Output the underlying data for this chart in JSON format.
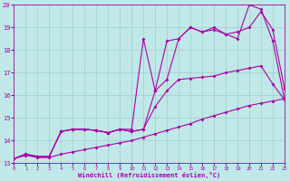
{
  "xlabel": "Windchill (Refroidissement éolien,°C)",
  "bg_color": "#c0e8e8",
  "grid_color": "#a0cccc",
  "line_color": "#aa00aa",
  "xmin": 0,
  "xmax": 23,
  "ymin": 13,
  "ymax": 20,
  "yticks": [
    13,
    14,
    15,
    16,
    17,
    18,
    19,
    20
  ],
  "xticks": [
    0,
    1,
    2,
    3,
    4,
    5,
    6,
    7,
    8,
    9,
    10,
    11,
    12,
    13,
    14,
    15,
    16,
    17,
    18,
    19,
    20,
    21,
    22,
    23
  ],
  "line1_x": [
    0,
    1,
    2,
    3,
    4,
    5,
    6,
    7,
    8,
    9,
    10,
    11,
    12,
    13,
    14,
    15,
    16,
    17,
    18,
    19,
    20,
    21,
    22,
    23
  ],
  "line1_y": [
    13.2,
    13.35,
    13.25,
    13.25,
    13.4,
    13.5,
    13.6,
    13.7,
    13.8,
    13.9,
    14.0,
    14.15,
    14.3,
    14.45,
    14.6,
    14.75,
    14.95,
    15.1,
    15.25,
    15.4,
    15.55,
    15.65,
    15.75,
    15.85
  ],
  "line2_x": [
    0,
    1,
    2,
    3,
    4,
    5,
    6,
    7,
    8,
    9,
    10,
    11,
    12,
    13,
    14,
    15,
    16,
    17,
    18,
    19,
    20,
    21,
    22,
    23
  ],
  "line2_y": [
    13.2,
    13.4,
    13.3,
    13.3,
    14.4,
    14.5,
    14.5,
    14.45,
    14.35,
    14.5,
    14.4,
    14.5,
    15.5,
    16.2,
    16.7,
    16.75,
    16.8,
    16.85,
    17.0,
    17.1,
    17.2,
    17.3,
    16.5,
    15.8
  ],
  "line3_x": [
    0,
    1,
    2,
    3,
    4,
    5,
    6,
    7,
    8,
    9,
    10,
    11,
    12,
    13,
    14,
    15,
    16,
    17,
    18,
    19,
    20,
    21,
    22,
    23
  ],
  "line3_y": [
    13.2,
    13.4,
    13.3,
    13.3,
    14.4,
    14.5,
    14.5,
    14.45,
    14.35,
    14.5,
    14.5,
    18.5,
    16.2,
    18.4,
    18.5,
    19.0,
    18.8,
    18.9,
    18.7,
    18.8,
    19.0,
    19.7,
    18.9,
    16.3
  ],
  "line4_x": [
    0,
    1,
    2,
    3,
    4,
    5,
    6,
    7,
    8,
    9,
    10,
    11,
    12,
    13,
    14,
    15,
    16,
    17,
    18,
    19,
    20,
    21,
    22,
    23
  ],
  "line4_y": [
    13.2,
    13.4,
    13.3,
    13.3,
    14.4,
    14.5,
    14.5,
    14.45,
    14.35,
    14.5,
    14.4,
    14.5,
    16.2,
    16.7,
    18.5,
    19.0,
    18.8,
    19.0,
    18.7,
    18.5,
    20.0,
    19.8,
    18.4,
    15.8
  ]
}
